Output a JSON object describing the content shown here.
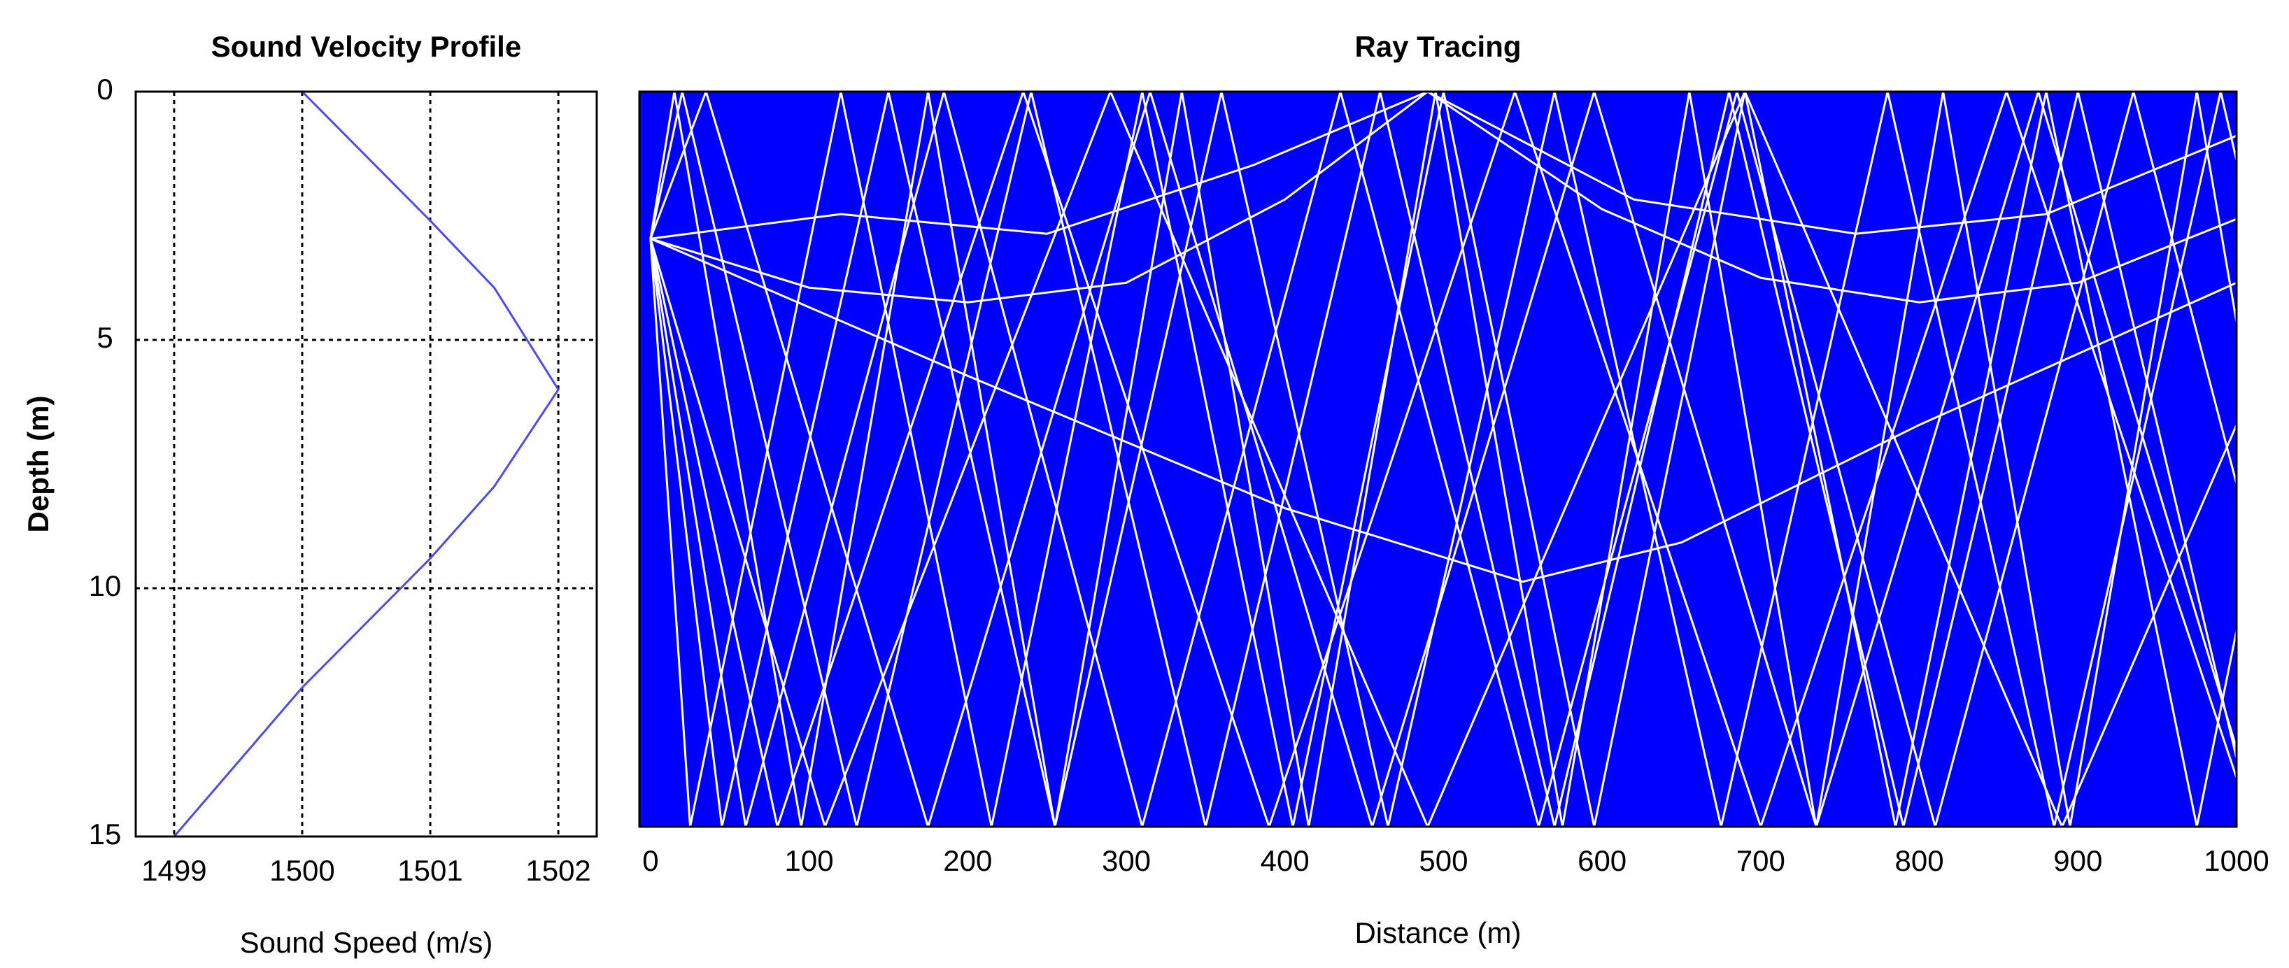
{
  "chart_data": [
    {
      "type": "line",
      "title": "Sound Velocity Profile",
      "xlabel": "Sound Speed (m/s)",
      "ylabel": "Depth (m)",
      "x": [
        1500,
        1501,
        1501.5,
        1502,
        1501.5,
        1501,
        1500,
        1499
      ],
      "values": [
        0,
        2.6,
        3.95,
        6,
        7.95,
        9.4,
        12,
        15
      ],
      "color": "#4b4bf0",
      "xlim": [
        1498.7,
        1502.3
      ],
      "xticks": [
        1499,
        1500,
        1501,
        1502
      ],
      "ylim": [
        0,
        15
      ],
      "yticks": [
        0,
        5,
        10,
        15
      ],
      "y_inverted": true,
      "grid": true
    },
    {
      "type": "ray",
      "title": "Ray Tracing",
      "xlabel": "Distance (m)",
      "color": "#ffffff",
      "background": "#0000ff",
      "xlim": [
        -7,
        1000
      ],
      "xticks": [
        0,
        100,
        200,
        300,
        400,
        500,
        600,
        700,
        800,
        900,
        1000
      ],
      "ylim": [
        0,
        15
      ],
      "y_inverted": true,
      "rays": [
        {
          "x": [
            0,
            45,
            150,
            255,
            360,
            465,
            570,
            675,
            780,
            885,
            990,
            1000
          ],
          "y": [
            3,
            15,
            0,
            15,
            0,
            15,
            0,
            15,
            0,
            15,
            0,
            1.4
          ]
        },
        {
          "x": [
            0,
            60,
            185,
            310,
            435,
            560,
            685,
            810,
            935,
            1000
          ],
          "y": [
            3,
            15,
            0,
            15,
            0,
            15,
            0,
            15,
            0,
            8
          ]
        },
        {
          "x": [
            0,
            20,
            130,
            240,
            350,
            460,
            570,
            680,
            790,
            900,
            1000
          ],
          "y": [
            3,
            0,
            15,
            0,
            15,
            0,
            15,
            0,
            15,
            0,
            13.6
          ]
        },
        {
          "x": [
            0,
            35,
            175,
            315,
            455,
            595,
            735,
            875,
            1000
          ],
          "y": [
            3,
            0,
            15,
            0,
            15,
            0,
            15,
            0,
            13.4
          ]
        },
        {
          "x": [
            0,
            80,
            235,
            390,
            545,
            700,
            855,
            1000
          ],
          "y": [
            3,
            15,
            0,
            15,
            0,
            15,
            0,
            14
          ]
        },
        {
          "x": [
            0,
            110,
            290,
            490,
            690,
            890,
            1000
          ],
          "y": [
            3,
            15,
            0,
            15,
            0,
            15,
            6.8
          ]
        },
        {
          "x": [
            0,
            15,
            95,
            175,
            255,
            335,
            415,
            495,
            575,
            655,
            735,
            815,
            895,
            975,
            1000
          ],
          "y": [
            3,
            0,
            15,
            0,
            15,
            0,
            15,
            0,
            15,
            0,
            15,
            0,
            15,
            0,
            4.7
          ]
        },
        {
          "x": [
            0,
            25,
            120,
            215,
            310,
            405,
            500,
            595,
            690,
            785,
            880,
            975,
            1000
          ],
          "y": [
            3,
            15,
            0,
            15,
            0,
            15,
            0,
            15,
            0,
            15,
            0,
            15,
            11
          ]
        },
        {
          "x": [
            0,
            100,
            200,
            300,
            400,
            490,
            600,
            700,
            800,
            900,
            1000
          ],
          "y": [
            3,
            4,
            4.3,
            3.9,
            2.2,
            0,
            2.4,
            3.8,
            4.3,
            3.9,
            2.6
          ]
        },
        {
          "x": [
            0,
            120,
            250,
            380,
            490,
            620,
            760,
            880,
            1000
          ],
          "y": [
            3,
            2.5,
            2.9,
            1.5,
            0,
            2.2,
            2.9,
            2.5,
            0.9
          ]
        },
        {
          "x": [
            0,
            200,
            400,
            550,
            650,
            800,
            1000
          ],
          "y": [
            3,
            5.8,
            8.5,
            10,
            9.2,
            6.8,
            3.9
          ]
        }
      ]
    }
  ]
}
